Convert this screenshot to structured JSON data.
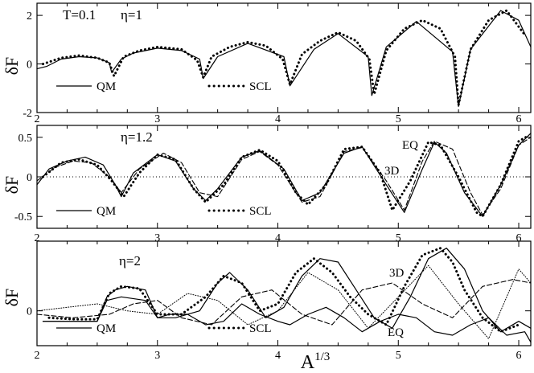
{
  "chart_data": [
    {
      "type": "line",
      "panel": "top",
      "annotations": [
        "T=0.1",
        "η=1"
      ],
      "ylabel": "δF",
      "xlim": [
        2,
        6.1
      ],
      "ylim": [
        -2,
        2.5
      ],
      "xticks": [
        "2",
        "3",
        "4",
        "5",
        "6"
      ],
      "yticks": [
        "-2",
        "0",
        "2"
      ],
      "zero_line": false,
      "legend": [
        {
          "label": "QM",
          "style": "solid"
        },
        {
          "label": "SCL",
          "style": "dotted-thick"
        }
      ],
      "series": [
        {
          "name": "QM",
          "style": "solid",
          "x": [
            2.0,
            2.08,
            2.2,
            2.35,
            2.5,
            2.6,
            2.62,
            2.7,
            2.8,
            3.0,
            3.2,
            3.35,
            3.38,
            3.5,
            3.75,
            4.05,
            4.1,
            4.3,
            4.5,
            4.75,
            4.78,
            4.9,
            5.15,
            5.45,
            5.5,
            5.6,
            5.85,
            6.0,
            6.1
          ],
          "y": [
            -0.2,
            -0.1,
            0.2,
            0.3,
            0.25,
            0.05,
            -0.35,
            0.2,
            0.45,
            0.65,
            0.55,
            0.2,
            -0.6,
            0.3,
            0.85,
            0.3,
            -0.9,
            0.6,
            1.25,
            0.3,
            -1.3,
            0.7,
            1.75,
            0.5,
            -1.75,
            0.6,
            2.2,
            1.8,
            0.7
          ]
        },
        {
          "name": "SCL",
          "style": "dotted",
          "x": [
            2.05,
            2.2,
            2.35,
            2.5,
            2.6,
            2.64,
            2.72,
            2.85,
            3.0,
            3.2,
            3.33,
            3.38,
            3.45,
            3.6,
            3.75,
            3.9,
            4.04,
            4.1,
            4.2,
            4.35,
            4.5,
            4.65,
            4.76,
            4.8,
            4.9,
            5.05,
            5.2,
            5.35,
            5.47,
            5.5,
            5.6,
            5.75,
            5.9,
            6.05
          ],
          "y": [
            0.0,
            0.25,
            0.35,
            0.25,
            0.05,
            -0.5,
            0.3,
            0.55,
            0.7,
            0.6,
            0.15,
            -0.55,
            0.3,
            0.7,
            0.9,
            0.75,
            0.2,
            -0.85,
            0.4,
            0.95,
            1.3,
            0.95,
            0.2,
            -1.25,
            0.55,
            1.45,
            1.8,
            1.45,
            0.3,
            -1.7,
            0.6,
            1.8,
            2.2,
            1.2
          ]
        }
      ]
    },
    {
      "type": "line",
      "panel": "middle",
      "annotations": [
        "η=1.2",
        "EQ",
        "3D"
      ],
      "ylabel": "δF",
      "xlim": [
        2,
        6.1
      ],
      "ylim": [
        -0.65,
        0.65
      ],
      "xticks": [
        "2",
        "3",
        "4",
        "5",
        "6"
      ],
      "yticks": [
        "-0.5",
        "0",
        "0.5"
      ],
      "zero_line": true,
      "legend": [
        {
          "label": "QM",
          "style": "solid"
        },
        {
          "label": "SCL",
          "style": "dotted-thick"
        }
      ],
      "series": [
        {
          "name": "QM",
          "style": "solid",
          "x": [
            2.0,
            2.1,
            2.25,
            2.4,
            2.55,
            2.65,
            2.7,
            2.8,
            3.0,
            3.15,
            3.3,
            3.4,
            3.5,
            3.7,
            3.85,
            4.05,
            4.2,
            4.35,
            4.55,
            4.7,
            4.9,
            5.05,
            5.2,
            5.3,
            5.4,
            5.55,
            5.7,
            5.85,
            6.0,
            6.1
          ],
          "y": [
            -0.1,
            0.1,
            0.2,
            0.25,
            0.15,
            -0.1,
            -0.25,
            0.05,
            0.28,
            0.2,
            -0.15,
            -0.3,
            -0.15,
            0.25,
            0.33,
            0.1,
            -0.3,
            -0.2,
            0.3,
            0.38,
            -0.1,
            -0.45,
            0.1,
            0.44,
            0.3,
            -0.2,
            -0.5,
            -0.1,
            0.4,
            0.55
          ]
        },
        {
          "name": "SCL",
          "style": "dotted",
          "x": [
            2.05,
            2.2,
            2.35,
            2.5,
            2.62,
            2.72,
            2.85,
            3.0,
            3.15,
            3.3,
            3.4,
            3.55,
            3.7,
            3.85,
            4.0,
            4.15,
            4.25,
            4.4,
            4.55,
            4.7,
            4.85,
            4.95,
            5.1,
            5.25,
            5.35,
            5.5,
            5.65,
            5.7,
            5.85,
            6.0,
            6.08
          ],
          "y": [
            0.0,
            0.18,
            0.22,
            0.15,
            -0.05,
            -0.25,
            0.05,
            0.28,
            0.22,
            -0.15,
            -0.32,
            -0.1,
            0.25,
            0.34,
            0.2,
            -0.2,
            -0.35,
            -0.1,
            0.35,
            0.38,
            0.05,
            -0.42,
            -0.05,
            0.44,
            0.4,
            0.0,
            -0.45,
            -0.5,
            -0.1,
            0.45,
            0.52
          ]
        },
        {
          "name": "EQ",
          "style": "dashed",
          "x": [
            2.0,
            2.15,
            2.3,
            2.45,
            2.6,
            2.7,
            2.85,
            3.05,
            3.2,
            3.35,
            3.5,
            3.7,
            3.85,
            4.0,
            4.2,
            4.35,
            4.55,
            4.7,
            4.9,
            5.05,
            5.2,
            5.3,
            5.45,
            5.6,
            5.7,
            5.85,
            6.0,
            6.1
          ],
          "y": [
            -0.05,
            0.12,
            0.2,
            0.18,
            0.0,
            -0.2,
            0.1,
            0.3,
            0.18,
            -0.2,
            -0.25,
            0.22,
            0.32,
            0.15,
            -0.32,
            -0.25,
            0.32,
            0.37,
            -0.05,
            -0.42,
            0.2,
            0.45,
            0.35,
            -0.2,
            -0.48,
            -0.15,
            0.4,
            0.5
          ]
        }
      ]
    },
    {
      "type": "line",
      "panel": "bottom",
      "annotations": [
        "η=2",
        "3D",
        "EQ"
      ],
      "ylabel": "δF",
      "xlabel": "A^{1/3}",
      "xlim": [
        2,
        6.1
      ],
      "ylim": [
        -0.5,
        1.0
      ],
      "xticks": [
        "2",
        "3",
        "4",
        "5",
        "6"
      ],
      "yticks": [
        "0"
      ],
      "zero_line": false,
      "legend": [
        {
          "label": "QM",
          "style": "solid"
        },
        {
          "label": "SCL",
          "style": "dotted-thick"
        }
      ],
      "series": [
        {
          "name": "QM (upper)",
          "style": "solid",
          "x": [
            2.05,
            2.3,
            2.5,
            2.58,
            2.65,
            2.75,
            2.9,
            3.0,
            3.15,
            3.35,
            3.5,
            3.6,
            3.75,
            3.9,
            4.05,
            4.2,
            4.35,
            4.5,
            4.65,
            4.8,
            4.95,
            5.1,
            5.25,
            5.4,
            5.55,
            5.7,
            5.85,
            6.0,
            6.1
          ],
          "y": [
            -0.15,
            -0.15,
            -0.15,
            0.2,
            0.3,
            0.35,
            0.3,
            -0.1,
            -0.1,
            0.0,
            0.4,
            0.55,
            0.3,
            -0.1,
            0.05,
            0.5,
            0.75,
            0.7,
            0.3,
            -0.1,
            -0.25,
            0.2,
            0.75,
            0.9,
            0.6,
            0.0,
            -0.3,
            -0.15,
            -0.25
          ]
        },
        {
          "name": "QM (lower)",
          "style": "solid",
          "x": [
            2.05,
            2.3,
            2.5,
            2.58,
            2.7,
            2.9,
            3.0,
            3.1,
            3.25,
            3.4,
            3.55,
            3.7,
            3.85,
            4.0,
            4.1,
            4.25,
            4.4,
            4.55,
            4.7,
            4.85,
            5.0,
            5.15,
            5.3,
            5.45,
            5.6,
            5.75,
            5.9,
            6.05,
            6.1
          ],
          "y": [
            -0.15,
            -0.15,
            -0.15,
            0.15,
            0.2,
            0.15,
            -0.1,
            -0.05,
            -0.05,
            -0.2,
            -0.15,
            0.1,
            -0.05,
            -0.15,
            -0.2,
            -0.05,
            0.05,
            -0.1,
            -0.3,
            -0.15,
            -0.05,
            -0.1,
            -0.3,
            -0.35,
            -0.2,
            -0.1,
            -0.35,
            -0.3,
            -0.45
          ]
        },
        {
          "name": "SCL",
          "style": "dotted",
          "x": [
            2.1,
            2.3,
            2.5,
            2.6,
            2.7,
            2.85,
            3.0,
            3.2,
            3.4,
            3.55,
            3.7,
            3.85,
            4.0,
            4.15,
            4.3,
            4.45,
            4.6,
            4.75,
            4.9,
            5.05,
            5.2,
            5.35,
            5.45,
            5.55,
            5.7,
            5.85,
            6.0
          ],
          "y": [
            -0.1,
            -0.12,
            -0.12,
            0.25,
            0.35,
            0.32,
            -0.05,
            -0.05,
            0.2,
            0.5,
            0.4,
            0.0,
            0.1,
            0.55,
            0.75,
            0.55,
            0.2,
            -0.05,
            -0.2,
            0.35,
            0.8,
            0.9,
            0.7,
            0.3,
            -0.1,
            -0.3,
            -0.2
          ]
        },
        {
          "name": "EQ",
          "style": "dashed",
          "x": [
            2.0,
            2.3,
            2.6,
            2.8,
            3.0,
            3.2,
            3.45,
            3.7,
            3.95,
            4.2,
            4.45,
            4.7,
            4.95,
            5.2,
            5.45,
            5.7,
            5.95,
            6.1
          ],
          "y": [
            -0.05,
            -0.1,
            -0.05,
            0.1,
            0.15,
            -0.1,
            -0.2,
            0.2,
            0.3,
            -0.05,
            -0.2,
            0.3,
            0.4,
            0.1,
            -0.1,
            0.35,
            0.45,
            0.4
          ]
        },
        {
          "name": "3D",
          "style": "dotted-thin",
          "x": [
            2.0,
            2.25,
            2.5,
            2.75,
            3.0,
            3.25,
            3.5,
            3.75,
            4.0,
            4.25,
            4.5,
            4.75,
            5.0,
            5.25,
            5.5,
            5.75,
            6.0,
            6.1
          ],
          "y": [
            0.0,
            0.05,
            0.1,
            0.0,
            -0.05,
            0.25,
            0.15,
            -0.2,
            0.0,
            0.55,
            0.3,
            -0.25,
            0.2,
            0.65,
            0.1,
            -0.4,
            0.6,
            0.4
          ]
        }
      ]
    }
  ]
}
